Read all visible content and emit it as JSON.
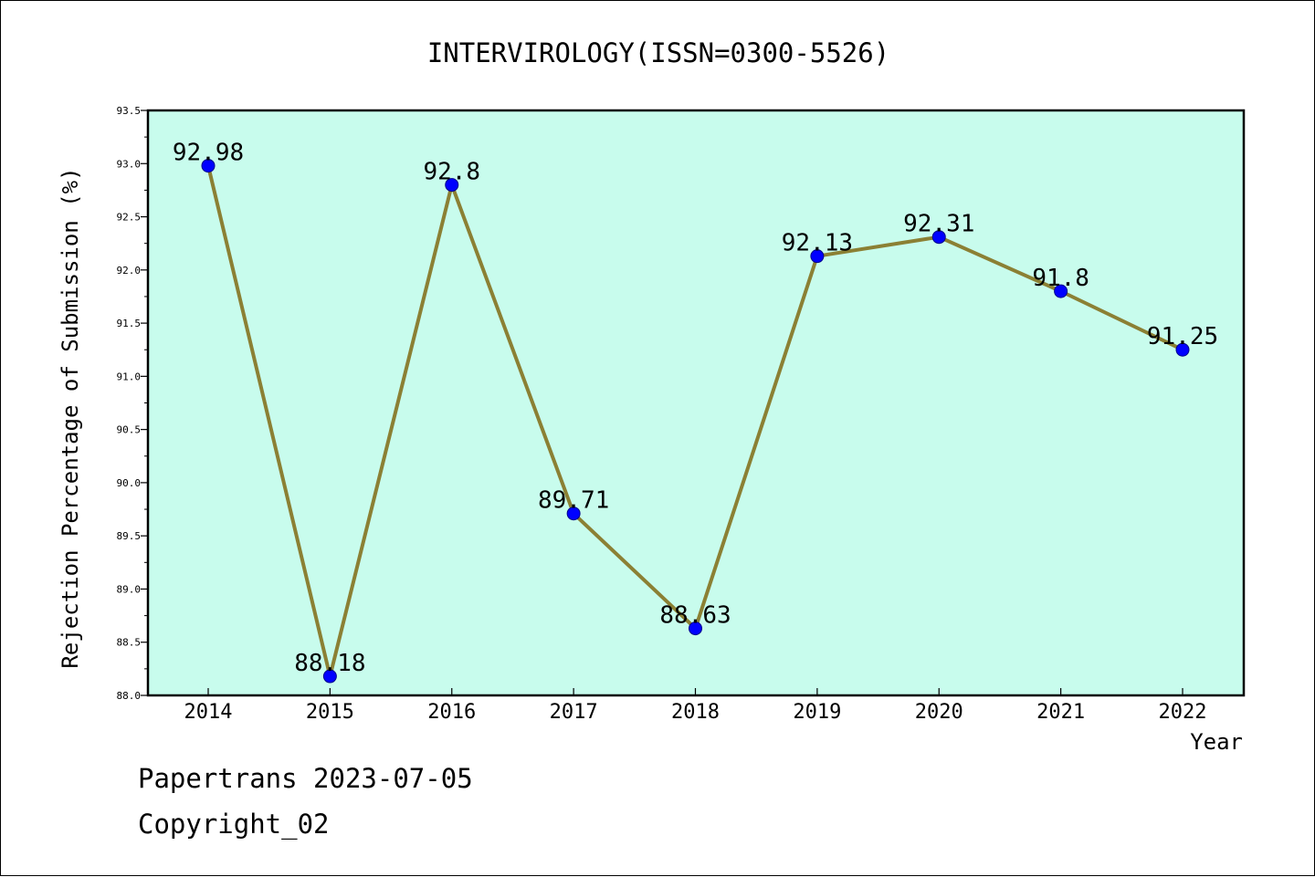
{
  "chart_data": {
    "type": "line",
    "title": "INTERVIROLOGY(ISSN=0300-5526)",
    "xlabel": "Year",
    "ylabel": "Rejection Percentage of Submission (%)",
    "categories": [
      "2014",
      "2015",
      "2016",
      "2017",
      "2018",
      "2019",
      "2020",
      "2021",
      "2022"
    ],
    "values": [
      92.98,
      88.18,
      92.8,
      89.71,
      88.63,
      92.13,
      92.31,
      91.8,
      91.25
    ],
    "data_labels": [
      "92.98",
      "88.18",
      "92.8",
      "89.71",
      "88.63",
      "92.13",
      "92.31",
      "91.8",
      "91.25"
    ],
    "ylim": [
      88.0,
      93.5
    ],
    "yticks": [
      "88.0",
      "88.5",
      "89.0",
      "89.5",
      "90.0",
      "90.5",
      "91.0",
      "91.5",
      "92.0",
      "92.5",
      "93.0",
      "93.5"
    ],
    "grid": false,
    "legend": "none",
    "colors": {
      "plot_background": "#c8fced",
      "line": "#8b8034",
      "marker": "#0000ff"
    }
  },
  "footer": {
    "line1": "Papertrans 2023-07-05",
    "line2": "Copyright_02"
  }
}
